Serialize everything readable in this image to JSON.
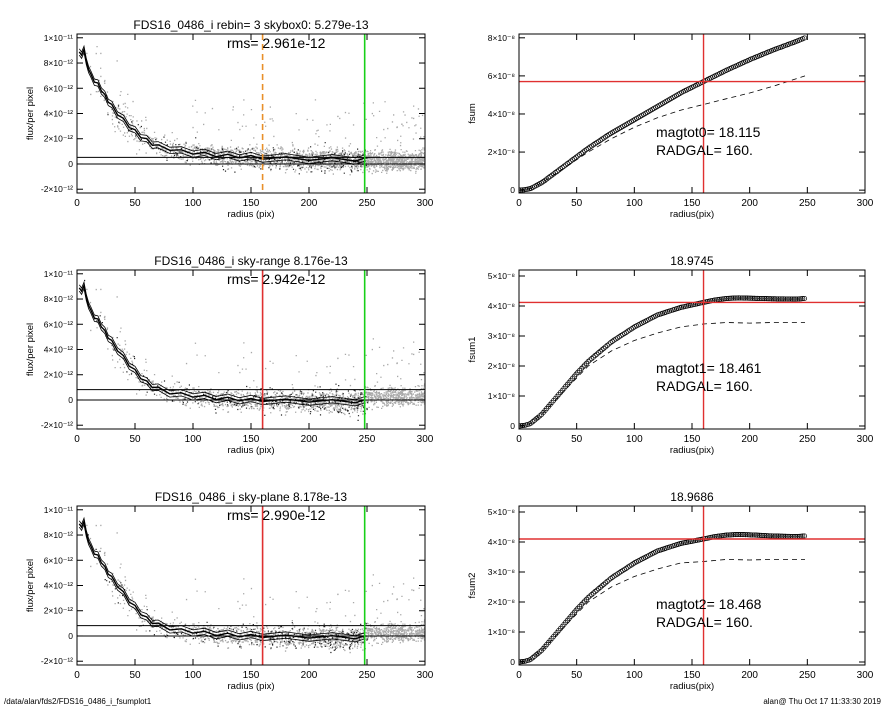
{
  "footer": {
    "path": "/data/alan/fds2/FDS16_0486_i_fsumplot1",
    "stamp": "alan@  Thu Oct 17 11:33:30 2019"
  },
  "chart_data": [
    {
      "type": "scatter",
      "title": "FDS16_0486_i rebin= 3    skybox0:  5.279e-13",
      "annotations": [
        "rms= 2.961e-12"
      ],
      "xlabel": "radius (pix)",
      "ylabel": "flux/per pixel",
      "xlim": [
        0,
        300
      ],
      "ylim": [
        -2.3e-12,
        1.03e-11
      ],
      "xticks": [
        0,
        50,
        100,
        150,
        200,
        250,
        300
      ],
      "xtick_labels": [
        "0",
        "50",
        "100",
        "150",
        "200",
        "250",
        "300"
      ],
      "yticks": [
        -2e-12,
        0,
        2e-12,
        4e-12,
        6e-12,
        8e-12,
        1e-11
      ],
      "ytick_labels": [
        "-2×10⁻¹²",
        "0",
        "2×10⁻¹²",
        "4×10⁻¹²",
        "6×10⁻¹²",
        "8×10⁻¹²",
        "1×10⁻¹¹"
      ],
      "hlines": [
        0,
        5.279e-13
      ],
      "vlines": [
        {
          "x": 160,
          "color": "#e8902a",
          "style": "dashed"
        },
        {
          "x": 248,
          "color": "#18d018",
          "style": "solid"
        }
      ],
      "profile": {
        "r": [
          2,
          4,
          6,
          8,
          10,
          12,
          15,
          18,
          21,
          24,
          27,
          30,
          35,
          40,
          45,
          50,
          55,
          60,
          65,
          70,
          80,
          90,
          100,
          110,
          120,
          130,
          140,
          150,
          160,
          180,
          200,
          220,
          240,
          248
        ],
        "flux": [
          9e-12,
          8.5e-12,
          9.2e-12,
          8e-12,
          7.6e-12,
          7e-12,
          6.6e-12,
          6.3e-12,
          5.9e-12,
          5.4e-12,
          5e-12,
          4.6e-12,
          4e-12,
          3.5e-12,
          3e-12,
          2.6e-12,
          2.2e-12,
          1.9e-12,
          1.6e-12,
          1.4e-12,
          1.2e-12,
          1e-12,
          9e-13,
          8e-13,
          7e-13,
          6.5e-13,
          6e-13,
          5.5e-13,
          5e-13,
          4.5e-13,
          4e-13,
          3.8e-13,
          3.5e-13,
          3.5e-13
        ]
      },
      "scatter_style": "dense grey pixel values spread around the profile"
    },
    {
      "type": "line",
      "title": "",
      "annotations": [
        "magtot0=  18.115",
        "RADGAL=    160."
      ],
      "xlabel": "radius(pix)",
      "ylabel": "fsum",
      "xlim": [
        0,
        300
      ],
      "ylim": [
        -1.5e-09,
        8.2e-08
      ],
      "xticks": [
        0,
        50,
        100,
        150,
        200,
        250,
        300
      ],
      "xtick_labels": [
        "0",
        "50",
        "100",
        "150",
        "200",
        "250",
        "300"
      ],
      "yticks": [
        0,
        2e-08,
        4e-08,
        6e-08,
        8e-08
      ],
      "ytick_labels": [
        "0",
        "2×10⁻⁸",
        "4×10⁻⁸",
        "6×10⁻⁸",
        "8×10⁻⁸"
      ],
      "vline": {
        "x": 160,
        "color": "#e03030"
      },
      "hline": {
        "y": 5.7e-08,
        "color": "#e03030"
      },
      "series": [
        {
          "style": "circles",
          "x": [
            0,
            5,
            10,
            20,
            30,
            40,
            50,
            60,
            80,
            100,
            120,
            140,
            160,
            180,
            200,
            220,
            240,
            248
          ],
          "y": [
            0,
            2e-10,
            8e-10,
            4e-09,
            8.5e-09,
            1.3e-08,
            1.75e-08,
            2.2e-08,
            3e-08,
            3.7e-08,
            4.4e-08,
            5.1e-08,
            5.7e-08,
            6.3e-08,
            6.85e-08,
            7.35e-08,
            7.8e-08,
            8e-08
          ]
        },
        {
          "style": "dashed",
          "x": [
            0,
            10,
            20,
            40,
            60,
            80,
            100,
            120,
            140,
            160,
            180,
            200,
            220,
            248
          ],
          "y": [
            0,
            8e-10,
            4e-09,
            1.2e-08,
            2e-08,
            2.7e-08,
            3.3e-08,
            3.8e-08,
            4.2e-08,
            4.5e-08,
            4.8e-08,
            5.1e-08,
            5.45e-08,
            6e-08
          ]
        }
      ]
    },
    {
      "type": "scatter",
      "title": "FDS16_0486_i sky-range  8.176e-13",
      "annotations": [
        "rms= 2.942e-12"
      ],
      "xlabel": "radius (pix)",
      "ylabel": "flux/per pixel",
      "xlim": [
        0,
        300
      ],
      "ylim": [
        -2.3e-12,
        1.03e-11
      ],
      "xticks": [
        0,
        50,
        100,
        150,
        200,
        250,
        300
      ],
      "xtick_labels": [
        "0",
        "50",
        "100",
        "150",
        "200",
        "250",
        "300"
      ],
      "yticks": [
        -2e-12,
        0,
        2e-12,
        4e-12,
        6e-12,
        8e-12,
        1e-11
      ],
      "ytick_labels": [
        "-2×10⁻¹²",
        "0",
        "2×10⁻¹²",
        "4×10⁻¹²",
        "6×10⁻¹²",
        "8×10⁻¹²",
        "1×10⁻¹¹"
      ],
      "hlines": [
        0,
        8.176e-13
      ],
      "vlines": [
        {
          "x": 160,
          "color": "#e03030",
          "style": "solid"
        },
        {
          "x": 248,
          "color": "#18d018",
          "style": "solid"
        }
      ],
      "profile": {
        "r": [
          2,
          4,
          6,
          8,
          10,
          12,
          15,
          18,
          21,
          24,
          27,
          30,
          35,
          40,
          45,
          50,
          55,
          60,
          65,
          70,
          80,
          90,
          100,
          110,
          120,
          130,
          140,
          150,
          160,
          180,
          200,
          220,
          240,
          248
        ],
        "flux": [
          9e-12,
          8.5e-12,
          9.2e-12,
          8e-12,
          7.6e-12,
          7e-12,
          6.6e-12,
          6.3e-12,
          5.9e-12,
          5.4e-12,
          5e-12,
          4.6e-12,
          4e-12,
          3.4e-12,
          2.8e-12,
          2.3e-12,
          1.8e-12,
          1.4e-12,
          1.1e-12,
          9e-13,
          6e-13,
          4.5e-13,
          3.5e-13,
          2.5e-13,
          1.5e-13,
          1e-13,
          5e-14,
          0,
          0,
          -5e-14,
          -5e-14,
          -1e-13,
          -1e-13,
          -1e-13
        ]
      },
      "scatter_style": "dense grey pixel values spread around the profile"
    },
    {
      "type": "line",
      "title": "18.9745",
      "annotations": [
        "magtot1=  18.461",
        "RADGAL=    160."
      ],
      "xlabel": "radius(pix)",
      "ylabel": "fsum1",
      "xlim": [
        0,
        300
      ],
      "ylim": [
        -1e-09,
        5.2e-08
      ],
      "xticks": [
        0,
        50,
        100,
        150,
        200,
        250,
        300
      ],
      "xtick_labels": [
        "0",
        "50",
        "100",
        "150",
        "200",
        "250",
        "300"
      ],
      "yticks": [
        0,
        1e-08,
        2e-08,
        3e-08,
        4e-08,
        5e-08
      ],
      "ytick_labels": [
        "0",
        "1×10⁻⁸",
        "2×10⁻⁸",
        "3×10⁻⁸",
        "4×10⁻⁸",
        "5×10⁻⁸"
      ],
      "vline": {
        "x": 160,
        "color": "#e03030"
      },
      "hline": {
        "y": 4.12e-08,
        "color": "#e03030"
      },
      "series": [
        {
          "style": "circles",
          "x": [
            0,
            5,
            10,
            20,
            30,
            40,
            50,
            60,
            80,
            100,
            120,
            140,
            160,
            170,
            180,
            190,
            200,
            220,
            240,
            248
          ],
          "y": [
            0,
            2e-10,
            8e-10,
            4e-09,
            8.5e-09,
            1.3e-08,
            1.75e-08,
            2.15e-08,
            2.8e-08,
            3.3e-08,
            3.7e-08,
            3.95e-08,
            4.12e-08,
            4.2e-08,
            4.25e-08,
            4.27e-08,
            4.26e-08,
            4.24e-08,
            4.23e-08,
            4.25e-08
          ]
        },
        {
          "style": "dashed",
          "x": [
            0,
            10,
            20,
            40,
            60,
            80,
            100,
            120,
            140,
            160,
            180,
            200,
            220,
            248
          ],
          "y": [
            0,
            8e-10,
            4e-09,
            1.2e-08,
            2e-08,
            2.5e-08,
            2.85e-08,
            3.1e-08,
            3.3e-08,
            3.4e-08,
            3.45e-08,
            3.43e-08,
            3.45e-08,
            3.45e-08
          ]
        }
      ]
    },
    {
      "type": "scatter",
      "title": "FDS16_0486_i sky-plane  8.178e-13",
      "annotations": [
        "rms= 2.990e-12"
      ],
      "xlabel": "radius (pix)",
      "ylabel": "flux/per pixel",
      "xlim": [
        0,
        300
      ],
      "ylim": [
        -2.3e-12,
        1.03e-11
      ],
      "xticks": [
        0,
        50,
        100,
        150,
        200,
        250,
        300
      ],
      "xtick_labels": [
        "0",
        "50",
        "100",
        "150",
        "200",
        "250",
        "300"
      ],
      "yticks": [
        -2e-12,
        0,
        2e-12,
        4e-12,
        6e-12,
        8e-12,
        1e-11
      ],
      "ytick_labels": [
        "-2×10⁻¹²",
        "0",
        "2×10⁻¹²",
        "4×10⁻¹²",
        "6×10⁻¹²",
        "8×10⁻¹²",
        "1×10⁻¹¹"
      ],
      "hlines": [
        0,
        8.178e-13
      ],
      "vlines": [
        {
          "x": 160,
          "color": "#e03030",
          "style": "solid"
        },
        {
          "x": 248,
          "color": "#18d018",
          "style": "solid"
        }
      ],
      "profile": {
        "r": [
          2,
          4,
          6,
          8,
          10,
          12,
          15,
          18,
          21,
          24,
          27,
          30,
          35,
          40,
          45,
          50,
          55,
          60,
          65,
          70,
          80,
          90,
          100,
          110,
          120,
          130,
          140,
          150,
          160,
          180,
          200,
          220,
          240,
          248
        ],
        "flux": [
          9e-12,
          8.5e-12,
          9.2e-12,
          8e-12,
          7.6e-12,
          7e-12,
          6.6e-12,
          6.3e-12,
          5.9e-12,
          5.4e-12,
          5e-12,
          4.6e-12,
          4e-12,
          3.4e-12,
          2.8e-12,
          2.3e-12,
          1.8e-12,
          1.4e-12,
          1.1e-12,
          9e-13,
          6e-13,
          4.5e-13,
          3.5e-13,
          2.5e-13,
          1.5e-13,
          1e-13,
          5e-14,
          0,
          0,
          -5e-14,
          -5e-14,
          -1e-13,
          -1e-13,
          -1e-13
        ]
      },
      "scatter_style": "dense grey pixel values spread around the profile"
    },
    {
      "type": "line",
      "title": "18.9686",
      "annotations": [
        "magtot2=  18.468",
        "RADGAL=    160."
      ],
      "xlabel": "radius(pix)",
      "ylabel": "fsum2",
      "xlim": [
        0,
        300
      ],
      "ylim": [
        -1e-09,
        5.2e-08
      ],
      "xticks": [
        0,
        50,
        100,
        150,
        200,
        250,
        300
      ],
      "xtick_labels": [
        "0",
        "50",
        "100",
        "150",
        "200",
        "250",
        "300"
      ],
      "yticks": [
        0,
        1e-08,
        2e-08,
        3e-08,
        4e-08,
        5e-08
      ],
      "ytick_labels": [
        "0",
        "1×10⁻⁸",
        "2×10⁻⁸",
        "3×10⁻⁸",
        "4×10⁻⁸",
        "5×10⁻⁸"
      ],
      "vline": {
        "x": 160,
        "color": "#e03030"
      },
      "hline": {
        "y": 4.1e-08,
        "color": "#e03030"
      },
      "series": [
        {
          "style": "circles",
          "x": [
            0,
            5,
            10,
            20,
            30,
            40,
            50,
            60,
            80,
            100,
            120,
            140,
            160,
            170,
            180,
            190,
            200,
            220,
            240,
            248
          ],
          "y": [
            0,
            2e-10,
            8e-10,
            4e-09,
            8.5e-09,
            1.3e-08,
            1.75e-08,
            2.15e-08,
            2.8e-08,
            3.3e-08,
            3.7e-08,
            3.95e-08,
            4.1e-08,
            4.18e-08,
            4.23e-08,
            4.25e-08,
            4.24e-08,
            4.2e-08,
            4.18e-08,
            4.2e-08
          ]
        },
        {
          "style": "dashed",
          "x": [
            0,
            10,
            20,
            40,
            60,
            80,
            100,
            120,
            140,
            160,
            180,
            200,
            220,
            248
          ],
          "y": [
            0,
            8e-10,
            4e-09,
            1.2e-08,
            2e-08,
            2.5e-08,
            2.85e-08,
            3.1e-08,
            3.3e-08,
            3.35e-08,
            3.42e-08,
            3.4e-08,
            3.42e-08,
            3.42e-08
          ]
        }
      ]
    }
  ]
}
